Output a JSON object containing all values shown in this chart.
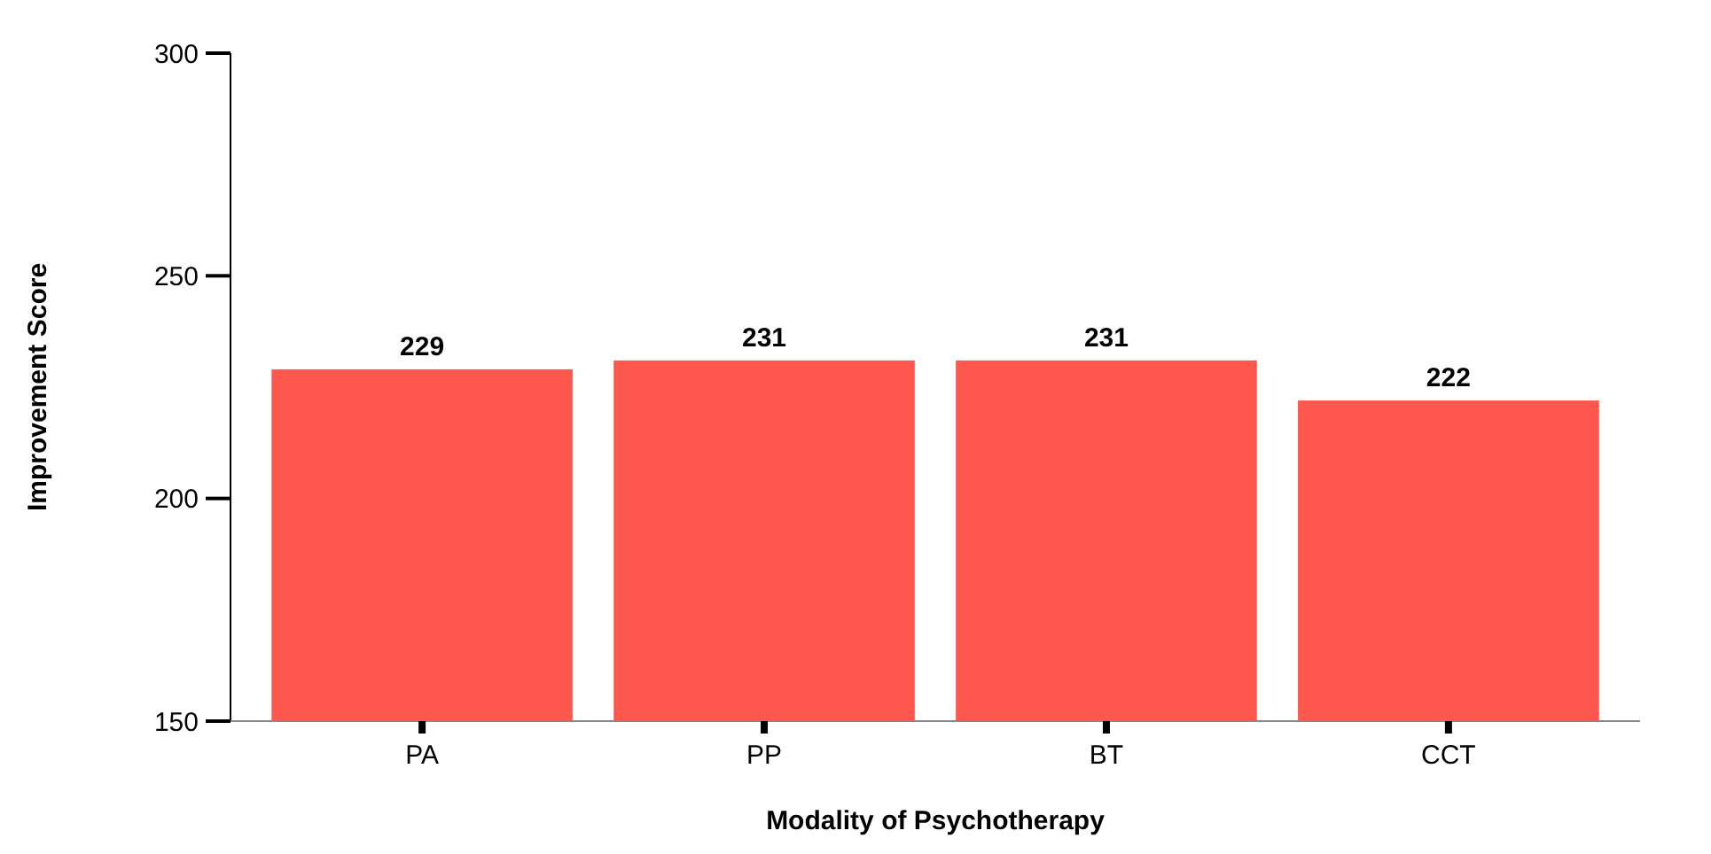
{
  "chart_data": {
    "type": "bar",
    "xlabel": "Modality of Psychotherapy",
    "ylabel": "Improvement Score",
    "categories": [
      "PA",
      "PP",
      "BT",
      "CCT"
    ],
    "values": [
      229,
      231,
      231,
      222
    ],
    "color": "#fe574d",
    "ylim": [
      150,
      300
    ],
    "yticks": [
      150,
      200,
      250,
      300
    ],
    "data_labels": true
  }
}
